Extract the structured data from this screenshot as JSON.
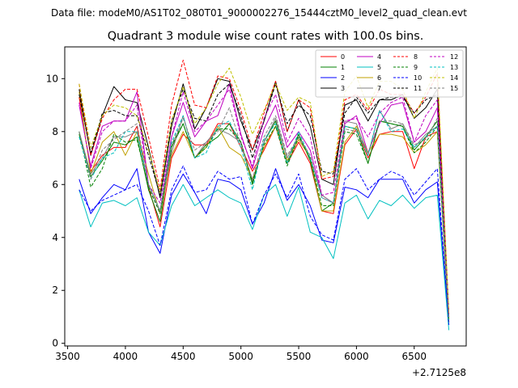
{
  "chart_data": {
    "type": "line",
    "suptitle": "Data file: modeM0/AS1T02_080T01_9000002276_15444cztM0_level2_quad_clean.evt",
    "title": "Quadrant 3 module wise count rates with 100.0s bins.",
    "xlabel": "",
    "ylabel": "",
    "x_offset_label": "+2.7125e8",
    "xlim": [
      3475,
      6950
    ],
    "ylim": [
      -0.1,
      11.2
    ],
    "xticks": [
      3500,
      4000,
      4500,
      5000,
      5500,
      6000,
      6500
    ],
    "xtick_labels": [
      "3500",
      "4000",
      "4500",
      "5000",
      "5500",
      "6000",
      "6500"
    ],
    "yticks": [
      0,
      2,
      4,
      6,
      8,
      10
    ],
    "ytick_labels": [
      "0",
      "2",
      "4",
      "6",
      "8",
      "10"
    ],
    "grid": false,
    "legend_position": "top-right",
    "x": [
      3600,
      3700,
      3800,
      3900,
      4000,
      4100,
      4200,
      4300,
      4400,
      4500,
      4600,
      4700,
      4800,
      4900,
      5000,
      5100,
      5200,
      5300,
      5400,
      5500,
      5600,
      5700,
      5800,
      5900,
      6000,
      6100,
      6200,
      6300,
      6400,
      6500,
      6600,
      6700,
      6800
    ],
    "series": [
      {
        "name": "0",
        "color": "#ff0000",
        "dash": false,
        "values": [
          9.3,
          6.5,
          7.1,
          7.4,
          7.4,
          8.2,
          5.9,
          4.4,
          7.0,
          7.9,
          7.5,
          7.5,
          8.3,
          8.3,
          7.4,
          6.5,
          7.3,
          8.2,
          6.8,
          7.6,
          6.8,
          5.0,
          4.9,
          7.5,
          8.1,
          7.0,
          7.9,
          8.0,
          8.0,
          6.6,
          7.8,
          8.0,
          0.8
        ]
      },
      {
        "name": "1",
        "color": "#008000",
        "dash": false,
        "values": [
          7.9,
          6.3,
          6.9,
          7.6,
          7.5,
          7.8,
          5.8,
          4.6,
          7.4,
          8.3,
          7.0,
          7.5,
          7.8,
          8.3,
          7.6,
          6.0,
          7.6,
          8.4,
          6.8,
          7.9,
          6.9,
          5.0,
          5.3,
          8.2,
          8.1,
          6.8,
          8.4,
          8.3,
          8.2,
          7.3,
          7.8,
          8.4,
          0.8
        ]
      },
      {
        "name": "2",
        "color": "#0000ff",
        "dash": false,
        "values": [
          6.2,
          4.9,
          5.5,
          6.0,
          5.8,
          6.6,
          4.2,
          3.4,
          5.6,
          6.4,
          5.7,
          4.9,
          6.2,
          6.1,
          5.8,
          4.5,
          5.3,
          6.6,
          5.4,
          6.0,
          5.2,
          3.9,
          3.8,
          5.9,
          5.8,
          5.5,
          6.2,
          6.2,
          6.2,
          5.3,
          5.8,
          6.1,
          0.7
        ]
      },
      {
        "name": "3",
        "color": "#000000",
        "dash": false,
        "values": [
          9.6,
          7.1,
          8.6,
          9.7,
          9.2,
          9.1,
          7.4,
          5.5,
          8.2,
          9.8,
          8.1,
          8.9,
          10.0,
          9.9,
          8.4,
          7.3,
          8.4,
          9.9,
          8.0,
          9.2,
          8.2,
          6.2,
          6.0,
          9.0,
          9.2,
          8.4,
          9.2,
          9.2,
          9.4,
          8.5,
          8.9,
          9.6,
          1.0
        ]
      },
      {
        "name": "4",
        "color": "#c000c0",
        "dash": false,
        "values": [
          9.0,
          6.7,
          8.2,
          8.4,
          8.4,
          9.5,
          6.0,
          5.0,
          7.8,
          9.1,
          7.8,
          8.4,
          8.6,
          9.8,
          7.9,
          6.6,
          8.1,
          9.0,
          7.4,
          8.0,
          7.3,
          5.6,
          5.3,
          8.3,
          8.6,
          7.2,
          8.3,
          9.0,
          9.1,
          7.6,
          8.0,
          8.9,
          0.9
        ]
      },
      {
        "name": "5",
        "color": "#00c0c0",
        "dash": false,
        "values": [
          5.8,
          4.4,
          5.3,
          5.4,
          5.2,
          5.5,
          4.2,
          3.7,
          5.2,
          6.0,
          5.2,
          5.5,
          5.8,
          5.5,
          5.3,
          4.3,
          5.6,
          6.0,
          4.8,
          5.9,
          4.2,
          4.0,
          3.2,
          5.3,
          5.6,
          4.7,
          5.4,
          5.2,
          5.6,
          5.1,
          5.5,
          5.6,
          0.5
        ]
      },
      {
        "name": "6",
        "color": "#c0a000",
        "dash": false,
        "values": [
          9.5,
          6.4,
          7.6,
          8.0,
          7.1,
          8.0,
          6.4,
          4.9,
          7.1,
          8.0,
          7.0,
          7.4,
          8.2,
          7.4,
          7.1,
          6.2,
          7.4,
          8.2,
          6.9,
          7.7,
          7.0,
          5.0,
          5.0,
          7.6,
          8.2,
          7.2,
          7.9,
          7.9,
          7.8,
          7.2,
          7.5,
          8.0,
          0.8
        ]
      },
      {
        "name": "7",
        "color": "#808080",
        "dash": false,
        "values": [
          8.0,
          6.4,
          7.0,
          7.8,
          7.8,
          8.0,
          6.0,
          5.0,
          7.2,
          8.6,
          7.0,
          7.6,
          8.1,
          7.9,
          7.6,
          6.1,
          7.6,
          8.5,
          7.0,
          7.8,
          7.0,
          5.6,
          5.3,
          8.4,
          8.3,
          7.1,
          8.8,
          8.1,
          8.3,
          7.4,
          7.9,
          8.2,
          0.9
        ]
      },
      {
        "name": "8",
        "color": "#ff0000",
        "dash": true,
        "values": [
          9.8,
          7.1,
          8.5,
          9.2,
          9.6,
          9.6,
          7.8,
          5.8,
          9.0,
          10.7,
          9.0,
          8.9,
          10.1,
          10.0,
          8.8,
          7.3,
          8.7,
          9.9,
          8.0,
          9.2,
          8.9,
          6.2,
          6.3,
          9.2,
          9.4,
          8.8,
          9.6,
          9.4,
          9.4,
          8.7,
          9.3,
          10.2,
          1.1
        ]
      },
      {
        "name": "9",
        "color": "#008000",
        "dash": true,
        "values": [
          8.0,
          5.9,
          6.6,
          7.9,
          7.6,
          7.7,
          5.9,
          4.9,
          7.5,
          8.3,
          7.0,
          7.4,
          8.1,
          8.1,
          7.6,
          6.1,
          7.5,
          8.2,
          6.7,
          7.8,
          7.0,
          5.2,
          5.2,
          8.0,
          7.9,
          6.8,
          8.4,
          8.3,
          8.2,
          7.2,
          7.6,
          8.2,
          0.9
        ]
      },
      {
        "name": "10",
        "color": "#0000ff",
        "dash": true,
        "values": [
          5.8,
          5.0,
          5.4,
          5.6,
          5.8,
          6.0,
          5.0,
          3.7,
          5.8,
          6.7,
          5.7,
          5.8,
          6.5,
          6.2,
          6.3,
          4.5,
          5.6,
          6.4,
          5.5,
          6.4,
          4.8,
          4.1,
          3.9,
          6.2,
          6.6,
          5.8,
          6.2,
          6.5,
          6.3,
          5.6,
          6.1,
          6.6,
          0.7
        ]
      },
      {
        "name": "11",
        "color": "#000000",
        "dash": true,
        "values": [
          9.4,
          7.2,
          8.7,
          8.8,
          8.6,
          8.6,
          7.1,
          5.6,
          8.4,
          9.6,
          8.5,
          8.4,
          9.4,
          9.8,
          8.6,
          7.0,
          8.4,
          9.8,
          8.3,
          9.0,
          8.6,
          6.5,
          6.4,
          8.7,
          9.3,
          8.7,
          9.2,
          9.3,
          9.3,
          8.7,
          9.2,
          9.4,
          1.0
        ]
      },
      {
        "name": "12",
        "color": "#c000c0",
        "dash": true,
        "values": [
          9.1,
          6.6,
          8.0,
          8.4,
          8.4,
          9.0,
          6.0,
          5.3,
          7.8,
          9.5,
          8.0,
          8.4,
          9.0,
          9.6,
          7.8,
          6.7,
          8.5,
          9.4,
          7.6,
          8.5,
          7.8,
          5.6,
          5.7,
          8.4,
          8.5,
          7.8,
          8.7,
          9.1,
          9.3,
          7.6,
          8.6,
          9.2,
          1.0
        ]
      },
      {
        "name": "13",
        "color": "#00c0c0",
        "dash": true,
        "values": [
          7.8,
          6.2,
          7.0,
          7.2,
          8.0,
          8.0,
          6.0,
          5.0,
          7.6,
          8.6,
          7.0,
          7.2,
          8.2,
          8.4,
          7.4,
          5.8,
          7.7,
          8.3,
          6.8,
          8.0,
          7.0,
          5.5,
          5.3,
          8.2,
          8.1,
          7.1,
          8.8,
          8.0,
          8.1,
          7.4,
          7.8,
          8.2,
          0.9
        ]
      },
      {
        "name": "14",
        "color": "#c0c000",
        "dash": true,
        "values": [
          9.8,
          7.4,
          8.6,
          9.0,
          8.9,
          8.6,
          7.3,
          5.7,
          8.4,
          9.7,
          8.3,
          8.9,
          9.8,
          10.4,
          9.3,
          7.9,
          8.8,
          9.8,
          8.8,
          9.3,
          9.1,
          6.3,
          6.5,
          9.5,
          10.1,
          8.9,
          9.9,
          9.9,
          9.6,
          8.5,
          9.5,
          10.4,
          1.1
        ]
      },
      {
        "name": "15",
        "color": "#808080",
        "dash": true,
        "values": [
          8.0,
          6.2,
          7.3,
          7.7,
          8.0,
          8.3,
          6.0,
          5.0,
          7.5,
          8.5,
          7.3,
          7.6,
          8.0,
          8.9,
          7.5,
          6.2,
          7.8,
          8.6,
          7.1,
          7.8,
          7.1,
          5.5,
          5.3,
          8.1,
          8.0,
          7.2,
          8.4,
          8.4,
          8.3,
          7.5,
          7.7,
          8.5,
          0.9
        ]
      }
    ]
  }
}
